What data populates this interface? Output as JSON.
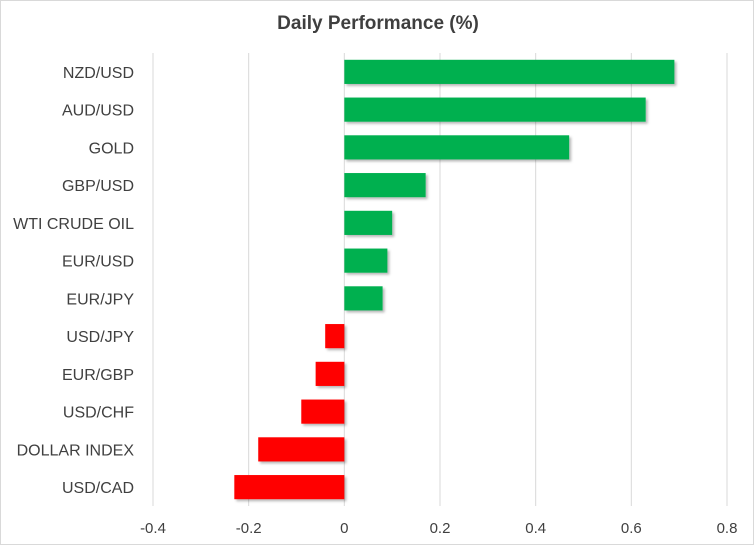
{
  "chart_data": {
    "type": "bar",
    "orientation": "horizontal",
    "title": "Daily Performance  (%)",
    "xlabel": "",
    "ylabel": "",
    "categories": [
      "NZD/USD",
      "AUD/USD",
      "GOLD",
      "GBP/USD",
      "WTI CRUDE OIL",
      "EUR/USD",
      "EUR/JPY",
      "USD/JPY",
      "EUR/GBP",
      "USD/CHF",
      "DOLLAR INDEX",
      "USD/CAD"
    ],
    "values": [
      0.69,
      0.63,
      0.47,
      0.17,
      0.1,
      0.09,
      0.08,
      -0.04,
      -0.06,
      -0.09,
      -0.18,
      -0.23
    ],
    "xlim": [
      -0.4,
      0.8
    ],
    "xticks": [
      -0.4,
      -0.2,
      0,
      0.2,
      0.4,
      0.6,
      0.8
    ],
    "xtick_labels": [
      "-0.4",
      "-0.2",
      "0",
      "0.2",
      "0.4",
      "0.6",
      "0.8"
    ],
    "grid": "vertical",
    "legend": "none",
    "colors": {
      "positive": "#00b050",
      "negative": "#ff0000",
      "grid": "#d9d9d9",
      "text": "#404040"
    }
  }
}
